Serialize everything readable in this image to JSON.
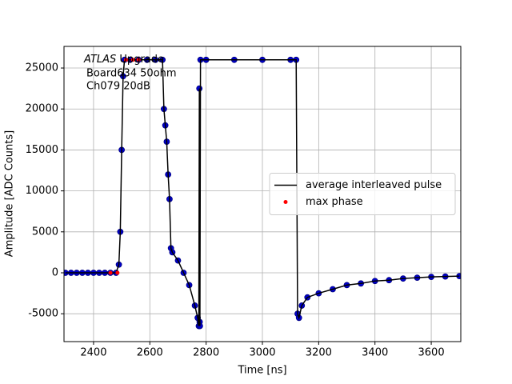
{
  "chart_data": {
    "type": "line",
    "annotations": [
      "ATLAS",
      "Upgrade",
      "Board634 50ohm",
      "Ch079 20dB"
    ],
    "xlabel": "Time [ns]",
    "ylabel": "Amplitude [ADC Counts]",
    "x": [
      2300,
      2320,
      2340,
      2360,
      2380,
      2400,
      2420,
      2440,
      2460,
      2480,
      2490,
      2495,
      2500,
      2505,
      2510,
      2530,
      2560,
      2590,
      2620,
      2645,
      2650,
      2655,
      2660,
      2665,
      2670,
      2675,
      2680,
      2700,
      2720,
      2740,
      2760,
      2770,
      2774,
      2776,
      2777,
      2778,
      2780,
      2800,
      2900,
      3000,
      3100,
      3120,
      3125,
      3130,
      3140,
      3160,
      3200,
      3250,
      3300,
      3350,
      3400,
      3450,
      3500,
      3550,
      3600,
      3650,
      3700
    ],
    "series": [
      {
        "name": "average interleaved pulse",
        "color": "#000000",
        "kind": "line",
        "values": [
          0,
          0,
          0,
          0,
          0,
          0,
          0,
          0,
          0,
          0,
          1000,
          5000,
          15000,
          24000,
          26000,
          26000,
          26000,
          26000,
          26000,
          26000,
          20000,
          18000,
          16000,
          12000,
          9000,
          3000,
          2500,
          1500,
          0,
          -1500,
          -4000,
          -5500,
          -6500,
          22500,
          -6000,
          -6500,
          26000,
          26000,
          26000,
          26000,
          26000,
          26000,
          -5000,
          -5500,
          -4000,
          -3000,
          -2500,
          -2000,
          -1500,
          -1300,
          -1000,
          -900,
          -700,
          -600,
          -500,
          -450,
          -400
        ]
      },
      {
        "color": "#0000cc",
        "kind": "scatter",
        "values": [
          0,
          0,
          0,
          0,
          0,
          0,
          0,
          0,
          0,
          0,
          1000,
          5000,
          15000,
          24000,
          26000,
          26000,
          26000,
          26000,
          26000,
          26000,
          20000,
          18000,
          16000,
          12000,
          9000,
          3000,
          2500,
          1500,
          0,
          -1500,
          -4000,
          -5500,
          -6500,
          22500,
          -6000,
          -6500,
          26000,
          26000,
          26000,
          26000,
          26000,
          26000,
          -5000,
          -5500,
          -4000,
          -3000,
          -2500,
          -2000,
          -1500,
          -1300,
          -1000,
          -900,
          -700,
          -600,
          -500,
          -450,
          -400
        ]
      },
      {
        "name": "max phase",
        "color": "#ff0000",
        "kind": "scatter",
        "x": [
          2460,
          2485,
          2515,
          2540,
          2560
        ],
        "values": [
          0,
          0,
          26000,
          26000,
          26000
        ]
      }
    ],
    "xlim": [
      2295,
      3705
    ],
    "ylim": [
      -8400,
      27640
    ],
    "xticks": [
      2400,
      2600,
      2800,
      3000,
      3200,
      3400,
      3600
    ],
    "yticks": [
      -5000,
      0,
      5000,
      10000,
      15000,
      20000,
      25000
    ],
    "grid": true,
    "legend": "center right"
  }
}
